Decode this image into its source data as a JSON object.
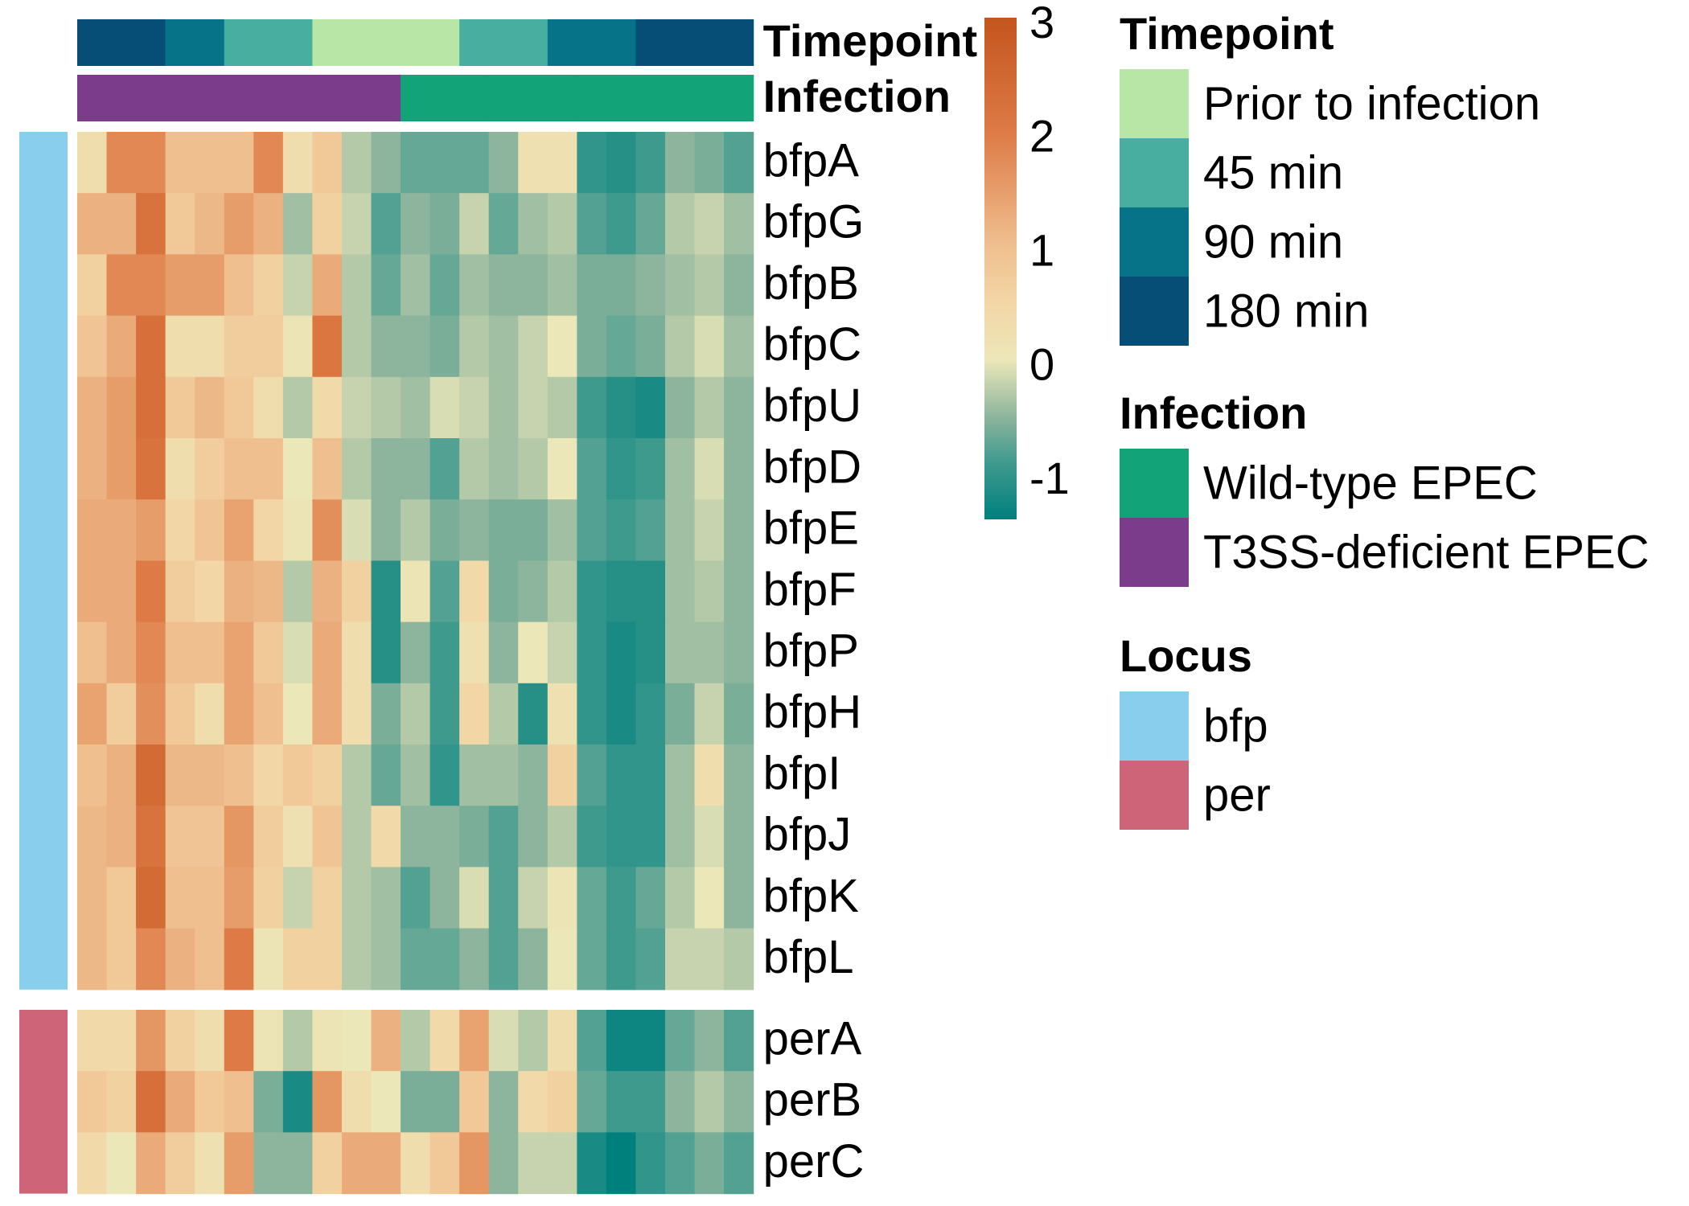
{
  "chart_data": {
    "type": "heatmap",
    "title": "",
    "n_columns": 23,
    "annotation_rows": [
      {
        "label": "Timepoint",
        "values": [
          "180 min",
          "180 min",
          "180 min",
          "90 min",
          "90 min",
          "45 min",
          "45 min",
          "45 min",
          "Prior to infection",
          "Prior to infection",
          "Prior to infection",
          "Prior to infection",
          "Prior to infection",
          "45 min",
          "45 min",
          "45 min",
          "90 min",
          "90 min",
          "90 min",
          "180 min",
          "180 min",
          "180 min",
          "180 min"
        ]
      },
      {
        "label": "Infection",
        "values": [
          "T3SS-deficient EPEC",
          "T3SS-deficient EPEC",
          "T3SS-deficient EPEC",
          "T3SS-deficient EPEC",
          "T3SS-deficient EPEC",
          "T3SS-deficient EPEC",
          "T3SS-deficient EPEC",
          "T3SS-deficient EPEC",
          "T3SS-deficient EPEC",
          "T3SS-deficient EPEC",
          "T3SS-deficient EPEC",
          "Wild-type EPEC",
          "Wild-type EPEC",
          "Wild-type EPEC",
          "Wild-type EPEC",
          "Wild-type EPEC",
          "Wild-type EPEC",
          "Wild-type EPEC",
          "Wild-type EPEC",
          "Wild-type EPEC",
          "Wild-type EPEC",
          "Wild-type EPEC",
          "Wild-type EPEC"
        ]
      }
    ],
    "row_groups": [
      {
        "locus": "bfp",
        "rows": [
          {
            "gene": "bfpA",
            "values": [
              0.3,
              1.8,
              1.8,
              1.0,
              1.0,
              1.0,
              1.8,
              0.3,
              0.8,
              -0.3,
              -0.5,
              -0.7,
              -0.7,
              -0.7,
              -0.5,
              0.2,
              0.2,
              -1.0,
              -1.1,
              -0.9,
              -0.5,
              -0.6,
              -0.8
            ]
          },
          {
            "gene": "bfpG",
            "values": [
              1.2,
              1.2,
              2.2,
              0.8,
              1.1,
              1.5,
              1.2,
              -0.4,
              0.6,
              -0.2,
              -0.8,
              -0.5,
              -0.6,
              -0.2,
              -0.7,
              -0.4,
              -0.3,
              -0.8,
              -0.9,
              -0.7,
              -0.3,
              -0.2,
              -0.4
            ]
          },
          {
            "gene": "bfpB",
            "values": [
              0.6,
              1.8,
              1.8,
              1.5,
              1.5,
              1.0,
              0.6,
              -0.2,
              1.3,
              -0.3,
              -0.7,
              -0.4,
              -0.7,
              -0.4,
              -0.5,
              -0.5,
              -0.4,
              -0.6,
              -0.6,
              -0.5,
              -0.4,
              -0.3,
              -0.5
            ]
          },
          {
            "gene": "bfpC",
            "values": [
              0.9,
              1.3,
              2.3,
              0.3,
              0.3,
              0.7,
              0.7,
              0.1,
              2.1,
              -0.3,
              -0.5,
              -0.5,
              -0.6,
              -0.3,
              -0.4,
              -0.2,
              0.0,
              -0.6,
              -0.7,
              -0.6,
              -0.3,
              -0.1,
              -0.4
            ]
          },
          {
            "gene": "bfpU",
            "values": [
              1.2,
              1.5,
              2.3,
              0.8,
              1.1,
              0.8,
              0.3,
              -0.3,
              0.4,
              -0.2,
              -0.3,
              -0.4,
              -0.1,
              -0.2,
              -0.4,
              -0.2,
              -0.3,
              -0.9,
              -1.1,
              -1.2,
              -0.5,
              -0.3,
              -0.5
            ]
          },
          {
            "gene": "bfpD",
            "values": [
              1.2,
              1.5,
              2.2,
              0.3,
              0.7,
              1.0,
              1.0,
              0.0,
              1.0,
              -0.3,
              -0.5,
              -0.5,
              -0.8,
              -0.3,
              -0.4,
              -0.3,
              0.0,
              -0.8,
              -1.0,
              -0.9,
              -0.4,
              -0.1,
              -0.5
            ]
          },
          {
            "gene": "bfpE",
            "values": [
              1.3,
              1.3,
              1.5,
              0.5,
              0.9,
              1.4,
              0.5,
              0.1,
              1.7,
              -0.1,
              -0.5,
              -0.3,
              -0.6,
              -0.5,
              -0.6,
              -0.6,
              -0.4,
              -0.8,
              -0.9,
              -0.8,
              -0.4,
              -0.2,
              -0.5
            ]
          },
          {
            "gene": "bfpF",
            "values": [
              1.3,
              1.3,
              2.0,
              0.7,
              0.5,
              1.2,
              1.1,
              -0.3,
              1.2,
              0.6,
              -1.1,
              0.1,
              -0.8,
              0.4,
              -0.6,
              -0.5,
              -0.3,
              -1.0,
              -1.1,
              -1.1,
              -0.4,
              -0.3,
              -0.5
            ]
          },
          {
            "gene": "bfpP",
            "values": [
              1.0,
              1.3,
              1.8,
              1.0,
              1.0,
              1.4,
              0.8,
              -0.1,
              1.3,
              0.3,
              -1.1,
              -0.5,
              -0.9,
              0.2,
              -0.5,
              0.0,
              -0.2,
              -1.0,
              -1.2,
              -1.1,
              -0.4,
              -0.4,
              -0.5
            ]
          },
          {
            "gene": "bfpH",
            "values": [
              1.4,
              0.7,
              1.7,
              0.8,
              0.3,
              1.4,
              1.0,
              0.0,
              1.3,
              0.3,
              -0.6,
              -0.3,
              -0.9,
              0.5,
              -0.3,
              -1.1,
              0.2,
              -1.0,
              -1.2,
              -1.0,
              -0.6,
              -0.2,
              -0.6
            ]
          },
          {
            "gene": "bfpI",
            "values": [
              1.0,
              1.2,
              2.4,
              1.1,
              1.1,
              1.0,
              0.5,
              0.8,
              0.6,
              -0.3,
              -0.7,
              -0.4,
              -1.0,
              -0.4,
              -0.4,
              -0.5,
              0.6,
              -0.8,
              -1.0,
              -1.0,
              -0.4,
              0.3,
              -0.5
            ]
          },
          {
            "gene": "bfpJ",
            "values": [
              1.1,
              1.2,
              2.2,
              0.9,
              0.9,
              1.6,
              0.7,
              0.2,
              0.9,
              -0.3,
              0.4,
              -0.5,
              -0.5,
              -0.6,
              -0.8,
              -0.5,
              -0.3,
              -0.9,
              -1.0,
              -1.0,
              -0.4,
              -0.1,
              -0.5
            ]
          },
          {
            "gene": "bfpK",
            "values": [
              1.1,
              0.8,
              2.4,
              1.0,
              1.0,
              1.5,
              0.6,
              -0.2,
              0.6,
              -0.3,
              -0.4,
              -0.8,
              -0.5,
              -0.1,
              -0.8,
              -0.2,
              0.1,
              -0.7,
              -0.9,
              -0.7,
              -0.3,
              0.0,
              -0.5
            ]
          },
          {
            "gene": "bfpL",
            "values": [
              1.1,
              0.8,
              1.8,
              1.2,
              1.0,
              2.0,
              0.1,
              0.6,
              0.6,
              -0.3,
              -0.4,
              -0.7,
              -0.7,
              -0.5,
              -0.8,
              -0.5,
              0.0,
              -0.7,
              -0.9,
              -0.8,
              -0.2,
              -0.2,
              -0.3
            ]
          }
        ]
      },
      {
        "locus": "per",
        "rows": [
          {
            "gene": "perA",
            "values": [
              0.4,
              0.4,
              1.6,
              0.6,
              0.3,
              2.0,
              0.1,
              -0.3,
              0.1,
              0.0,
              1.2,
              -0.3,
              0.4,
              1.4,
              -0.1,
              -0.3,
              0.3,
              -0.8,
              -1.3,
              -1.3,
              -0.7,
              -0.5,
              -0.8
            ]
          },
          {
            "gene": "perB",
            "values": [
              0.8,
              0.6,
              2.3,
              1.3,
              0.8,
              1.0,
              -0.6,
              -1.2,
              1.6,
              0.3,
              0.0,
              -0.6,
              -0.6,
              0.8,
              -0.5,
              0.4,
              0.6,
              -0.7,
              -0.9,
              -0.9,
              -0.5,
              -0.3,
              -0.5
            ]
          },
          {
            "gene": "perC",
            "values": [
              0.4,
              0.0,
              1.3,
              0.7,
              0.2,
              1.5,
              -0.5,
              -0.5,
              0.6,
              1.3,
              1.3,
              0.3,
              0.8,
              1.6,
              -0.5,
              -0.2,
              -0.2,
              -1.2,
              -1.4,
              -1.0,
              -0.8,
              -0.6,
              -0.8
            ]
          }
        ]
      }
    ],
    "color_scale": {
      "ticks": [
        "3",
        "2",
        "1",
        "0",
        "-1"
      ],
      "range": [
        -1.4,
        3.0
      ],
      "stops": [
        {
          "v": -1.4,
          "c": "#00807d"
        },
        {
          "v": -0.9,
          "c": "#3f9a8e"
        },
        {
          "v": -0.5,
          "c": "#8db59d"
        },
        {
          "v": 0.0,
          "c": "#ece7b9"
        },
        {
          "v": 0.5,
          "c": "#f3d6a6"
        },
        {
          "v": 1.0,
          "c": "#efbf8f"
        },
        {
          "v": 2.0,
          "c": "#dd7a45"
        },
        {
          "v": 3.0,
          "c": "#c4551e"
        }
      ]
    },
    "legends": {
      "timepoint": {
        "title": "Timepoint",
        "items": [
          {
            "label": "Prior to infection",
            "color": "#b8e6a7"
          },
          {
            "label": "45 min",
            "color": "#48ae9f"
          },
          {
            "label": "90 min",
            "color": "#067388"
          },
          {
            "label": "180 min",
            "color": "#074e76"
          }
        ]
      },
      "infection": {
        "title": "Infection",
        "items": [
          {
            "label": "Wild-type EPEC",
            "color": "#13a379"
          },
          {
            "label": "T3SS-deficient EPEC",
            "color": "#7a3c8b"
          }
        ]
      },
      "locus": {
        "title": "Locus",
        "items": [
          {
            "label": "bfp",
            "color": "#89ceed"
          },
          {
            "label": "per",
            "color": "#cd6477"
          }
        ]
      }
    }
  }
}
